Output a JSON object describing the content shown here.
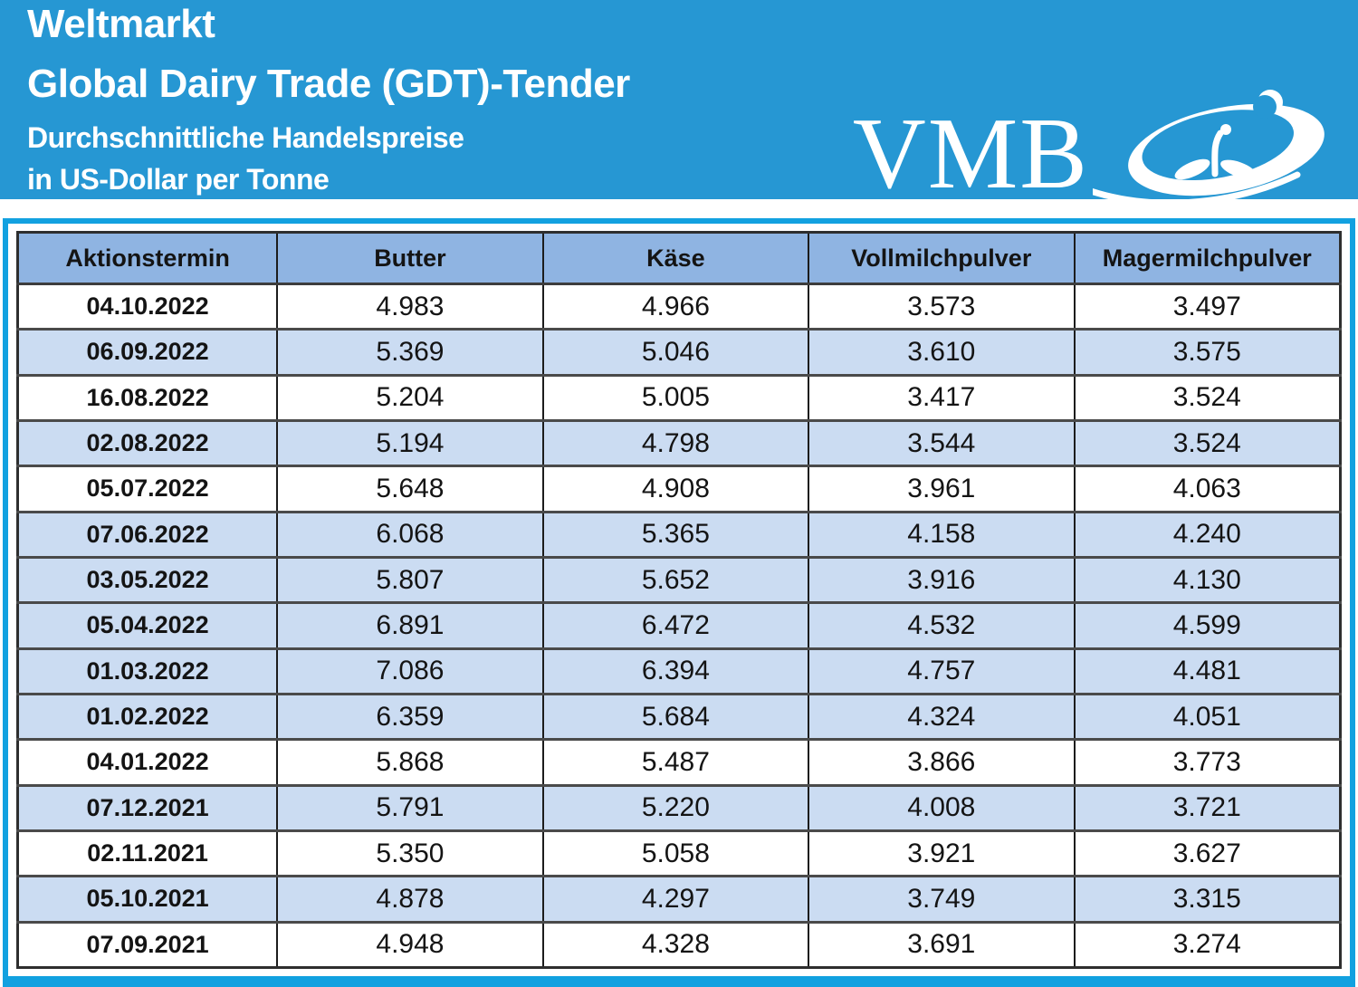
{
  "header": {
    "title_line1": "Weltmarkt",
    "title_line2": "Global Dairy Trade (GDT)-Tender",
    "subtitle_line1": "Durchschnittliche Handelspreise",
    "subtitle_line2": "in US-Dollar per Tonne",
    "logo_text": "VMB"
  },
  "colors": {
    "banner_blue": "#2697d3",
    "frame_blue": "#12a1e0",
    "header_row_blue": "#8fb4e2",
    "shaded_row_blue": "#cbdcf2",
    "text": "#141414"
  },
  "table": {
    "columns": [
      "Aktionstermin",
      "Butter",
      "Käse",
      "Vollmilchpulver",
      "Magermilchpulver"
    ],
    "rows": [
      {
        "date": "04.10.2022",
        "values": [
          "4.983",
          "4.966",
          "3.573",
          "3.497"
        ],
        "shaded": false
      },
      {
        "date": "06.09.2022",
        "values": [
          "5.369",
          "5.046",
          "3.610",
          "3.575"
        ],
        "shaded": true
      },
      {
        "date": "16.08.2022",
        "values": [
          "5.204",
          "5.005",
          "3.417",
          "3.524"
        ],
        "shaded": false
      },
      {
        "date": "02.08.2022",
        "values": [
          "5.194",
          "4.798",
          "3.544",
          "3.524"
        ],
        "shaded": true
      },
      {
        "date": "05.07.2022",
        "values": [
          "5.648",
          "4.908",
          "3.961",
          "4.063"
        ],
        "shaded": false
      },
      {
        "date": "07.06.2022",
        "values": [
          "6.068",
          "5.365",
          "4.158",
          "4.240"
        ],
        "shaded": true
      },
      {
        "date": "03.05.2022",
        "values": [
          "5.807",
          "5.652",
          "3.916",
          "4.130"
        ],
        "shaded": true
      },
      {
        "date": "05.04.2022",
        "values": [
          "6.891",
          "6.472",
          "4.532",
          "4.599"
        ],
        "shaded": true
      },
      {
        "date": "01.03.2022",
        "values": [
          "7.086",
          "6.394",
          "4.757",
          "4.481"
        ],
        "shaded": true
      },
      {
        "date": "01.02.2022",
        "values": [
          "6.359",
          "5.684",
          "4.324",
          "4.051"
        ],
        "shaded": true
      },
      {
        "date": "04.01.2022",
        "values": [
          "5.868",
          "5.487",
          "3.866",
          "3.773"
        ],
        "shaded": false
      },
      {
        "date": "07.12.2021",
        "values": [
          "5.791",
          "5.220",
          "4.008",
          "3.721"
        ],
        "shaded": true
      },
      {
        "date": "02.11.2021",
        "values": [
          "5.350",
          "5.058",
          "3.921",
          "3.627"
        ],
        "shaded": false
      },
      {
        "date": "05.10.2021",
        "values": [
          "4.878",
          "4.297",
          "3.749",
          "3.315"
        ],
        "shaded": true
      },
      {
        "date": "07.09.2021",
        "values": [
          "4.948",
          "4.328",
          "3.691",
          "3.274"
        ],
        "shaded": false
      }
    ]
  }
}
